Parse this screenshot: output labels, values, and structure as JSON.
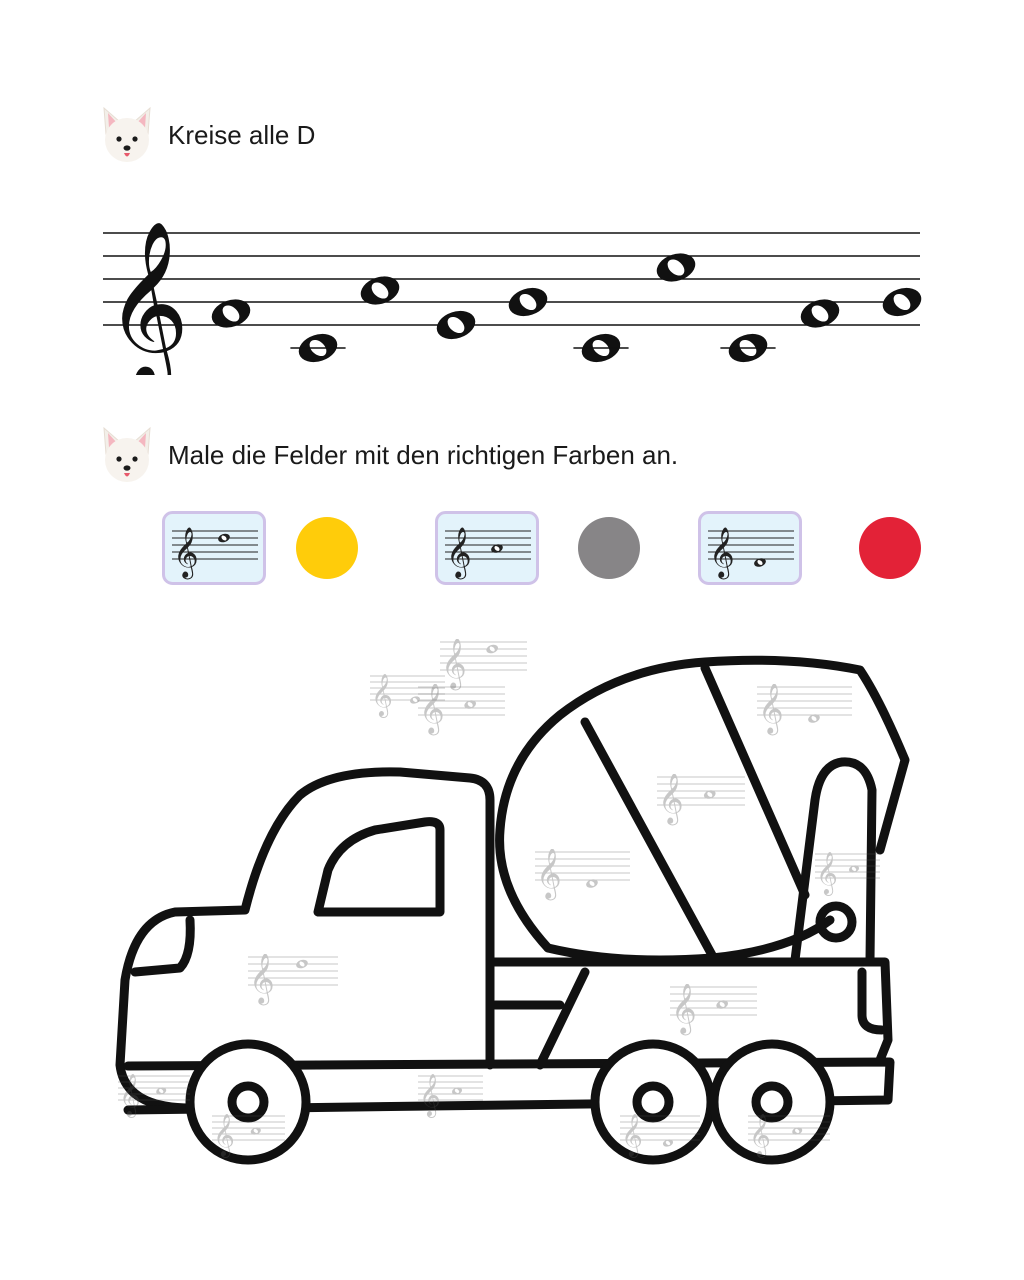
{
  "tasks": [
    {
      "text": "Kreise alle D",
      "icon": "dog-face-icon"
    },
    {
      "text": "Male die Felder mit den richtigen Farben an.",
      "icon": "dog-face-icon"
    }
  ],
  "note_exercise": {
    "clef": "treble",
    "notes_staff_positions": [
      1,
      -2,
      3,
      0,
      2,
      -2,
      5,
      -2,
      1,
      2
    ],
    "notes_letter_names_not_shown": true
  },
  "legend": [
    {
      "staff_position": 6,
      "color": "#FFCC0A"
    },
    {
      "staff_position": 3,
      "color": "#878587"
    },
    {
      "staff_position": -1,
      "color": "#E32237"
    }
  ],
  "coloring": {
    "subject": "cement-mixer-truck",
    "line_color": "#111111"
  }
}
